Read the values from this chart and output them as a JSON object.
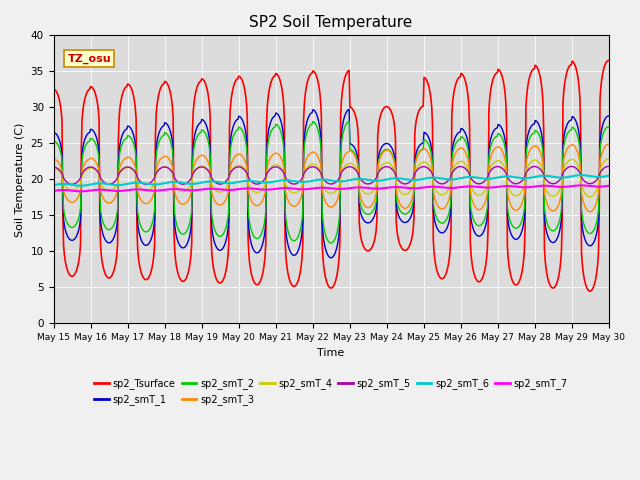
{
  "title": "SP2 Soil Temperature",
  "xlabel": "Time",
  "ylabel": "Soil Temperature (C)",
  "ylim": [
    0,
    40
  ],
  "annotation": "TZ_osu",
  "legend_labels": [
    "sp2_Tsurface",
    "sp2_smT_1",
    "sp2_smT_2",
    "sp2_smT_3",
    "sp2_smT_4",
    "sp2_smT_5",
    "sp2_smT_6",
    "sp2_smT_7"
  ],
  "line_colors": [
    "#ff0000",
    "#0000cc",
    "#00cc00",
    "#ff8800",
    "#cccc00",
    "#aa00aa",
    "#00cccc",
    "#ff00ff"
  ],
  "background_color": "#dcdcdc",
  "xtick_labels": [
    "May 15",
    "May 16",
    "May 17",
    "May 18",
    "May 19",
    "May 20",
    "May 21",
    "May 22",
    "May 23",
    "May 24",
    "May 25",
    "May 26",
    "May 27",
    "May 28",
    "May 29",
    "May 30"
  ],
  "n_days": 15,
  "pts_per_day": 48
}
